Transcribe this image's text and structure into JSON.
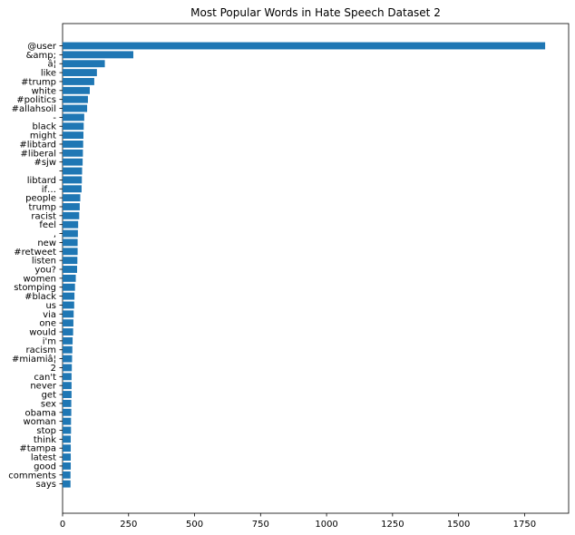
{
  "chart_data": {
    "type": "bar",
    "orientation": "horizontal",
    "title": "Most Popular Words in Hate Speech Dataset 2",
    "xlabel": "",
    "ylabel": "",
    "xlim": [
      0,
      1917
    ],
    "xticks": [
      0,
      250,
      500,
      750,
      1000,
      1250,
      1500,
      1750
    ],
    "grid": false,
    "bar_color": "#1f77b4",
    "categories": [
      "@user",
      "&amp;",
      "â¦",
      "like",
      "#trump",
      "white",
      "#politics",
      "#allahsoil",
      "-",
      "black",
      "might",
      "#libtard",
      "#liberal",
      "#sjw",
      "",
      "libtard",
      "if…",
      "people",
      "trump",
      "racist",
      "feel",
      ",",
      "new",
      "#retweet",
      "listen",
      "you?",
      "women",
      "stomping",
      "#black",
      "us",
      "via",
      "one",
      "would",
      "i'm",
      "racism",
      "#miamiâ¦",
      "2",
      "can't",
      "never",
      "get",
      "sex",
      "obama",
      "woman",
      "stop",
      "think",
      "#tampa",
      "latest",
      "good",
      "comments",
      "says"
    ],
    "values": [
      1828,
      268,
      160,
      130,
      120,
      103,
      96,
      93,
      82,
      80,
      79,
      78,
      77,
      76,
      74,
      73,
      72,
      67,
      65,
      63,
      59,
      58,
      57,
      57,
      56,
      55,
      50,
      47,
      45,
      44,
      42,
      41,
      40,
      38,
      37,
      36,
      35,
      34,
      34,
      34,
      33,
      33,
      32,
      32,
      31,
      31,
      31,
      31,
      30,
      30
    ]
  }
}
